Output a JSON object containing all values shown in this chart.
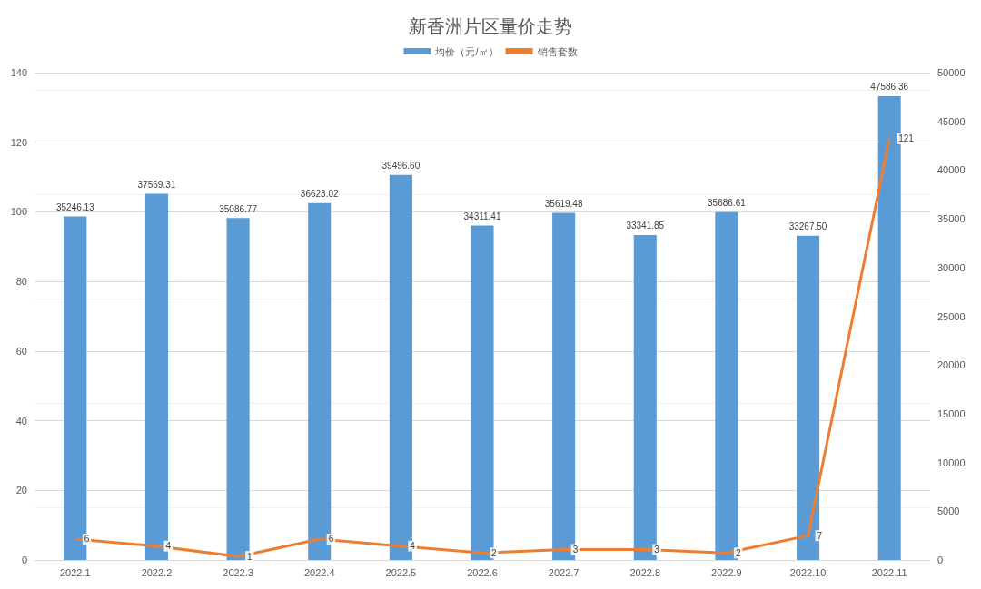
{
  "chart_data": {
    "type": "bar",
    "title": "新香洲片区量价走势",
    "categories": [
      "2022.1",
      "2022.2",
      "2022.3",
      "2022.4",
      "2022.5",
      "2022.6",
      "2022.7",
      "2022.8",
      "2022.9",
      "2022.10",
      "2022.11"
    ],
    "series": [
      {
        "name": "均价（元/㎡）",
        "axis": "y2",
        "color": "#5b9bd5",
        "values": [
          35246.13,
          37569.31,
          35086.77,
          36623.02,
          39496.6,
          34311.41,
          35619.48,
          33341.85,
          35686.61,
          33267.5,
          47586.36
        ],
        "value_labels": [
          "35246.13",
          "37569.31",
          "35086.77",
          "36623.02",
          "39496.60",
          "34311.41",
          "35619.48",
          "33341.85",
          "35686.61",
          "33267.50",
          "47586.36"
        ]
      },
      {
        "name": "销售套数",
        "type": "line",
        "color": "#ed7d31",
        "values": [
          6,
          4,
          1,
          6,
          4,
          2,
          3,
          3,
          2,
          7,
          121
        ],
        "value_labels": [
          "6",
          "4",
          "1",
          "6",
          "4",
          "2",
          "3",
          "3",
          "2",
          "7",
          "121"
        ]
      }
    ],
    "ylim": [
      0,
      140
    ],
    "yticks": [
      0,
      20,
      40,
      60,
      80,
      100,
      120,
      140
    ],
    "y2lim": [
      0,
      50000
    ],
    "y2ticks": [
      0,
      5000,
      10000,
      15000,
      20000,
      25000,
      30000,
      35000,
      40000,
      45000,
      50000
    ],
    "grid": "y",
    "legend": "top",
    "marker": "none"
  }
}
